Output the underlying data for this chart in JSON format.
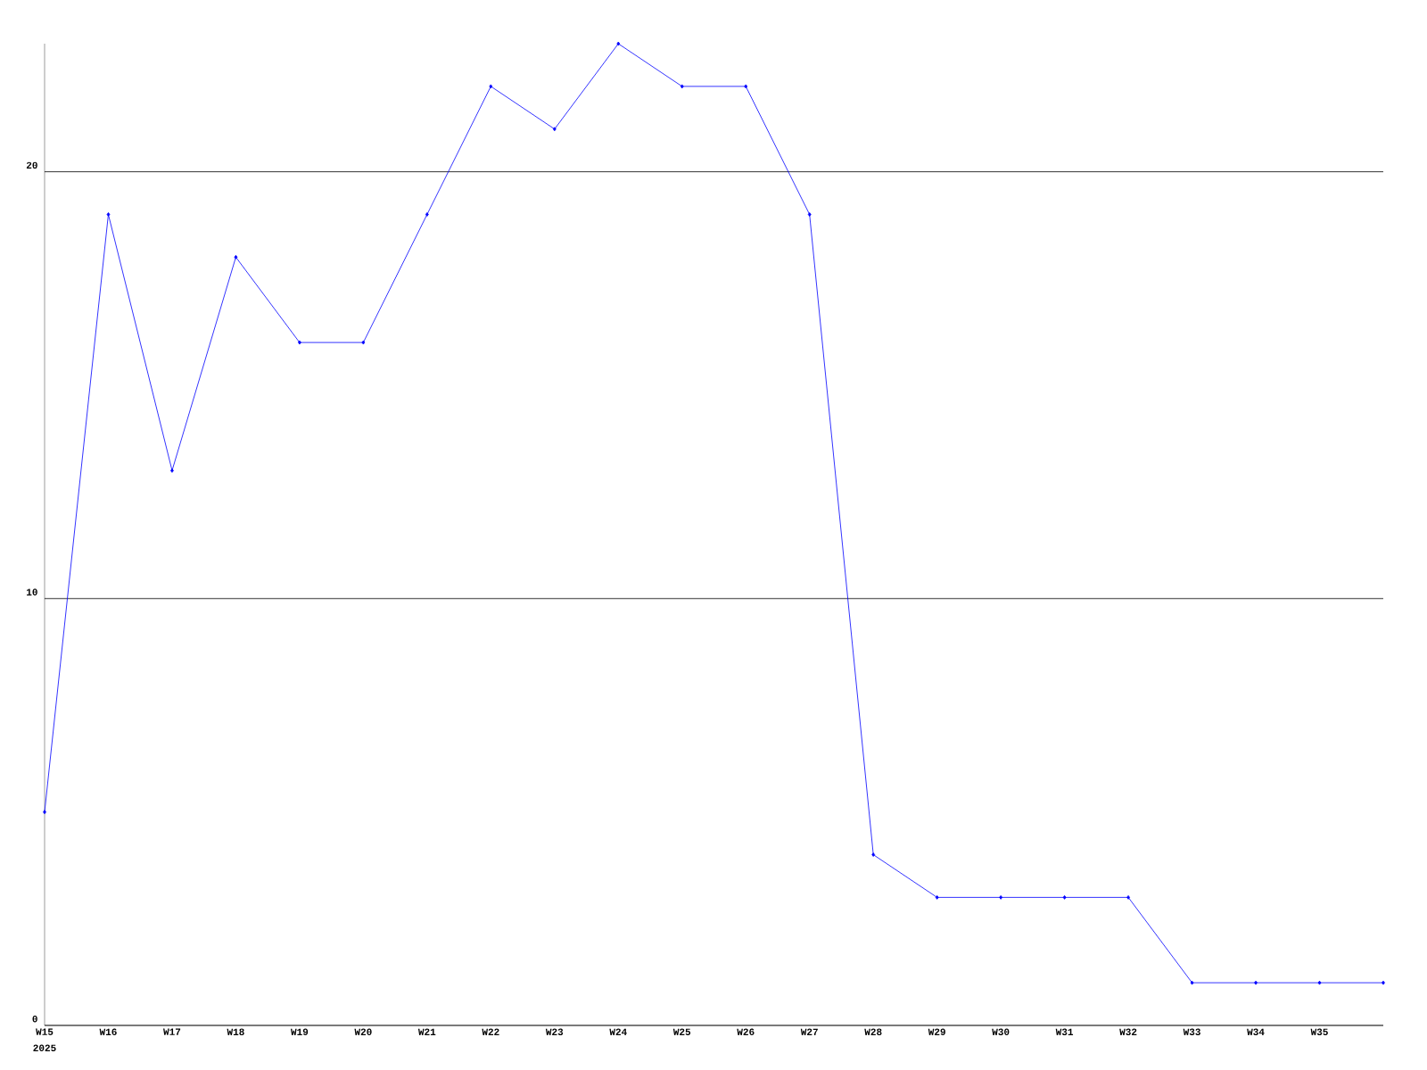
{
  "chart_data": {
    "type": "line",
    "categories": [
      "W15",
      "W16",
      "W17",
      "W18",
      "W19",
      "W20",
      "W21",
      "W22",
      "W23",
      "W24",
      "W25",
      "W26",
      "W27",
      "W28",
      "W29",
      "W30",
      "W31",
      "W32",
      "W33",
      "W34",
      "W35",
      null
    ],
    "values": [
      5,
      19,
      13,
      18,
      16,
      16,
      19,
      22,
      21,
      23,
      22,
      22,
      19,
      4,
      3,
      3,
      3,
      3,
      1,
      1,
      1,
      1
    ],
    "color": "#0000ff",
    "marker": "diamond",
    "line_style": "solid",
    "ylim": [
      0,
      23
    ],
    "yticks": [
      0,
      10,
      20
    ],
    "grid": "y",
    "annotations": [
      "2025"
    ]
  }
}
